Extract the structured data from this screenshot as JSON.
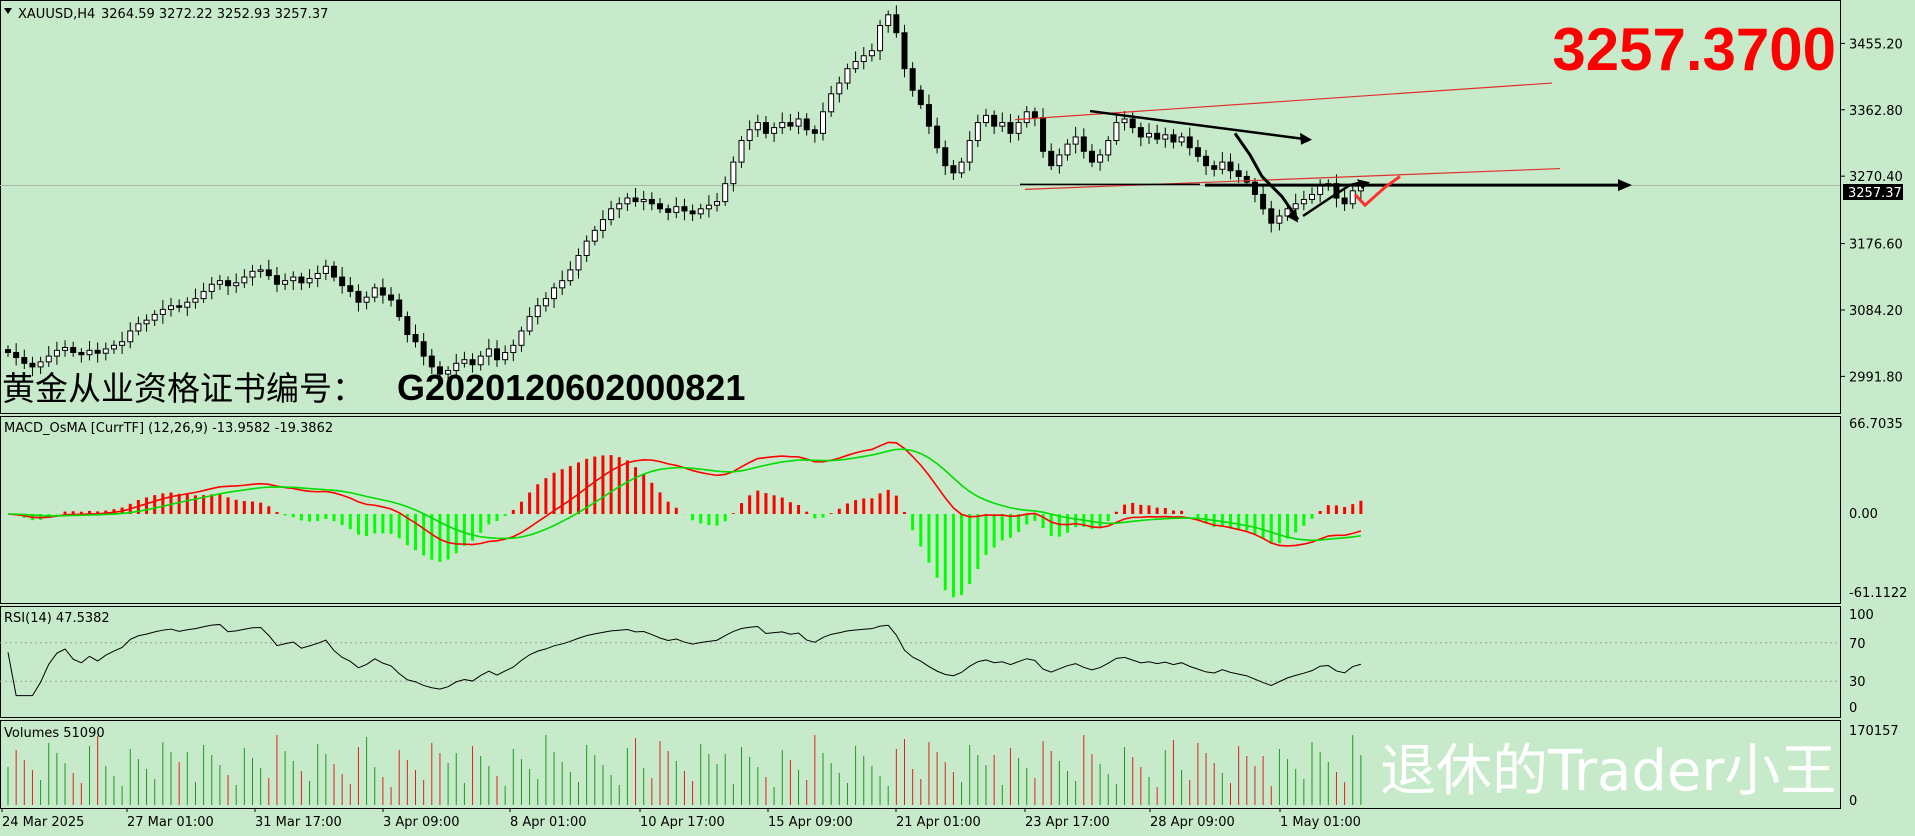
{
  "header": {
    "symbol_label": "XAUUSD,H4",
    "ohlc": "3264.59 3272.22 3252.93 3257.37",
    "big_price": "3257.3700",
    "current_price_tag": "3257.37"
  },
  "overlays": {
    "cert_prefix": "黄金从业资格证书编号：",
    "cert_number": "G2020120602000821",
    "watermark": "退休的Trader小王"
  },
  "colors": {
    "background": "#c7ebca",
    "bull_candle": "#ffffff",
    "bear_candle": "#000000",
    "macd_pos": "#ff0000",
    "macd_neg": "#00ff00",
    "macd_line": "#ff0000",
    "signal_line": "#00dd00",
    "big_price": "#ff0000"
  },
  "chart_data": [
    {
      "type": "candlestick",
      "panel": "price",
      "ylim": [
        2945,
        3510
      ],
      "y_ticks": [
        "3455.20",
        "3362.80",
        "3270.40",
        "3176.60",
        "3084.20",
        "2991.80"
      ],
      "y_tick_values": [
        3455.2,
        3362.8,
        3270.4,
        3176.6,
        3084.2,
        2991.8
      ],
      "current_price": 3257.37,
      "x_ticks": [
        "24 Mar 2025",
        "27 Mar 01:00",
        "31 Mar 17:00",
        "3 Apr 09:00",
        "8 Apr 01:00",
        "10 Apr 17:00",
        "15 Apr 09:00",
        "21 Apr 01:00",
        "23 Apr 17:00",
        "28 Apr 09:00",
        "1 May 01:00"
      ],
      "closes": [
        3025,
        3018,
        3010,
        3005,
        3012,
        3020,
        3028,
        3032,
        3025,
        3022,
        3028,
        3024,
        3030,
        3035,
        3040,
        3055,
        3065,
        3070,
        3078,
        3085,
        3090,
        3088,
        3095,
        3100,
        3110,
        3120,
        3125,
        3118,
        3122,
        3130,
        3138,
        3140,
        3132,
        3120,
        3125,
        3130,
        3122,
        3128,
        3135,
        3145,
        3130,
        3118,
        3110,
        3095,
        3102,
        3115,
        3105,
        3098,
        3075,
        3050,
        3040,
        3020,
        3005,
        2995,
        3000,
        3010,
        3015,
        3008,
        3020,
        3030,
        3015,
        3025,
        3035,
        3055,
        3075,
        3090,
        3100,
        3115,
        3125,
        3140,
        3160,
        3180,
        3195,
        3210,
        3225,
        3232,
        3240,
        3235,
        3238,
        3232,
        3225,
        3220,
        3228,
        3222,
        3218,
        3225,
        3230,
        3235,
        3260,
        3290,
        3320,
        3335,
        3345,
        3330,
        3338,
        3345,
        3340,
        3350,
        3335,
        3330,
        3360,
        3385,
        3400,
        3420,
        3430,
        3438,
        3445,
        3480,
        3495,
        3470,
        3420,
        3390,
        3370,
        3340,
        3310,
        3285,
        3275,
        3290,
        3320,
        3345,
        3355,
        3340,
        3345,
        3330,
        3345,
        3360,
        3352,
        3305,
        3285,
        3300,
        3315,
        3325,
        3305,
        3290,
        3300,
        3320,
        3345,
        3350,
        3338,
        3325,
        3330,
        3322,
        3328,
        3318,
        3325,
        3310,
        3298,
        3285,
        3280,
        3290,
        3278,
        3270,
        3262,
        3245,
        3225,
        3205,
        3215,
        3225,
        3232,
        3238,
        3245,
        3258,
        3260,
        3240,
        3232,
        3250,
        3257
      ],
      "drawn_lines": [
        {
          "kind": "channel-upper",
          "from": [
            3349,
            "23 Apr"
          ],
          "to": [
            3400,
            "after 1 May"
          ]
        },
        {
          "kind": "channel-lower",
          "from": [
            3252,
            "23 Apr"
          ],
          "to": [
            3281,
            "after 1 May"
          ]
        },
        {
          "kind": "trend-down",
          "from": [
            3360,
            "23 Apr"
          ],
          "to": [
            3322,
            "30 Apr"
          ]
        },
        {
          "kind": "horizontal",
          "price": 3259
        }
      ]
    },
    {
      "type": "histogram+lines",
      "panel": "MACD_OsMA",
      "label": "MACD_OsMA [CurrTF] (12,26,9) -13.9582 -19.3862",
      "y_ticks": [
        "66.7035",
        "0.00",
        "-61.1122"
      ],
      "ylim": [
        -61.1122,
        66.7035
      ]
    },
    {
      "type": "line",
      "panel": "RSI",
      "label": "RSI(14) 47.5382",
      "y_ticks": [
        "100",
        "70",
        "30",
        "0"
      ],
      "ylim": [
        0,
        100
      ]
    },
    {
      "type": "bar",
      "panel": "Volumes",
      "label": "Volumes 51090",
      "y_ticks": [
        "170157",
        "0"
      ],
      "ylim": [
        0,
        170157
      ]
    }
  ]
}
